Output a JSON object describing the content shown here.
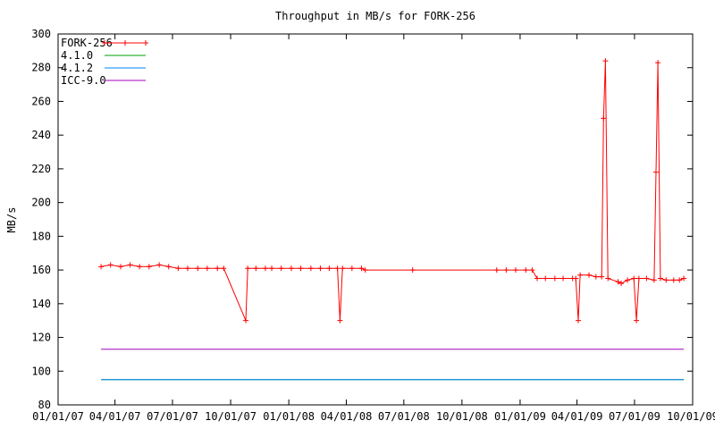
{
  "chart_data": {
    "type": "line",
    "title": "Throughput in MB/s for FORK-256",
    "xlabel": "",
    "ylabel": "MB/s",
    "xlim": [
      "2007-01-01",
      "2009-10-01"
    ],
    "ylim": [
      80,
      300
    ],
    "x_ticks": [
      "01/01/07",
      "04/01/07",
      "07/01/07",
      "10/01/07",
      "01/01/08",
      "04/01/08",
      "07/01/08",
      "10/01/08",
      "01/01/09",
      "04/01/09",
      "07/01/09",
      "10/01/09"
    ],
    "y_ticks": [
      80,
      100,
      120,
      140,
      160,
      180,
      200,
      220,
      240,
      260,
      280,
      300
    ],
    "grid": false,
    "legend_position": "top-left",
    "series": [
      {
        "name": "FORK-256",
        "color": "#ff0000",
        "marker": "plus",
        "points": [
          [
            "2007-03-10",
            162
          ],
          [
            "2007-03-25",
            163
          ],
          [
            "2007-04-10",
            162
          ],
          [
            "2007-04-25",
            163
          ],
          [
            "2007-05-10",
            162
          ],
          [
            "2007-05-25",
            162
          ],
          [
            "2007-06-10",
            163
          ],
          [
            "2007-06-25",
            162
          ],
          [
            "2007-07-10",
            161
          ],
          [
            "2007-07-25",
            161
          ],
          [
            "2007-08-10",
            161
          ],
          [
            "2007-08-25",
            161
          ],
          [
            "2007-09-10",
            161
          ],
          [
            "2007-09-20",
            161
          ],
          [
            "2007-10-25",
            130
          ],
          [
            "2007-10-28",
            161
          ],
          [
            "2007-11-10",
            161
          ],
          [
            "2007-11-25",
            161
          ],
          [
            "2007-12-05",
            161
          ],
          [
            "2007-12-20",
            161
          ],
          [
            "2008-01-05",
            161
          ],
          [
            "2008-01-20",
            161
          ],
          [
            "2008-02-05",
            161
          ],
          [
            "2008-02-20",
            161
          ],
          [
            "2008-03-05",
            161
          ],
          [
            "2008-03-18",
            161
          ],
          [
            "2008-03-22",
            130
          ],
          [
            "2008-03-26",
            161
          ],
          [
            "2008-04-10",
            161
          ],
          [
            "2008-04-25",
            161
          ],
          [
            "2008-05-01",
            160
          ],
          [
            "2008-07-15",
            160
          ],
          [
            "2008-11-25",
            160
          ],
          [
            "2008-12-10",
            160
          ],
          [
            "2008-12-25",
            160
          ],
          [
            "2009-01-10",
            160
          ],
          [
            "2009-01-20",
            160
          ],
          [
            "2009-01-28",
            155
          ],
          [
            "2009-02-10",
            155
          ],
          [
            "2009-02-25",
            155
          ],
          [
            "2009-03-10",
            155
          ],
          [
            "2009-03-25",
            155
          ],
          [
            "2009-03-30",
            155
          ],
          [
            "2009-04-03",
            130
          ],
          [
            "2009-04-06",
            157
          ],
          [
            "2009-04-20",
            157
          ],
          [
            "2009-05-01",
            156
          ],
          [
            "2009-05-10",
            156
          ],
          [
            "2009-05-13",
            250
          ],
          [
            "2009-05-16",
            284
          ],
          [
            "2009-05-20",
            155
          ],
          [
            "2009-06-05",
            153
          ],
          [
            "2009-06-10",
            152
          ],
          [
            "2009-06-20",
            154
          ],
          [
            "2009-06-30",
            155
          ],
          [
            "2009-07-04",
            130
          ],
          [
            "2009-07-08",
            155
          ],
          [
            "2009-07-20",
            155
          ],
          [
            "2009-08-01",
            154
          ],
          [
            "2009-08-04",
            218
          ],
          [
            "2009-08-07",
            283
          ],
          [
            "2009-08-11",
            155
          ],
          [
            "2009-08-20",
            154
          ],
          [
            "2009-09-01",
            154
          ],
          [
            "2009-09-10",
            154
          ],
          [
            "2009-09-17",
            155
          ]
        ]
      },
      {
        "name": "4.1.0",
        "color": "#00a000",
        "marker": "none",
        "points": [
          [
            "2007-03-10",
            95
          ],
          [
            "2009-09-17",
            95
          ]
        ]
      },
      {
        "name": "4.1.2",
        "color": "#0080ff",
        "marker": "none",
        "points": [
          [
            "2007-03-10",
            95
          ],
          [
            "2009-09-17",
            95
          ]
        ]
      },
      {
        "name": "ICC-9.0",
        "color": "#a000c0",
        "marker": "none",
        "points": [
          [
            "2007-03-10",
            113
          ],
          [
            "2009-09-17",
            113
          ]
        ]
      }
    ]
  }
}
